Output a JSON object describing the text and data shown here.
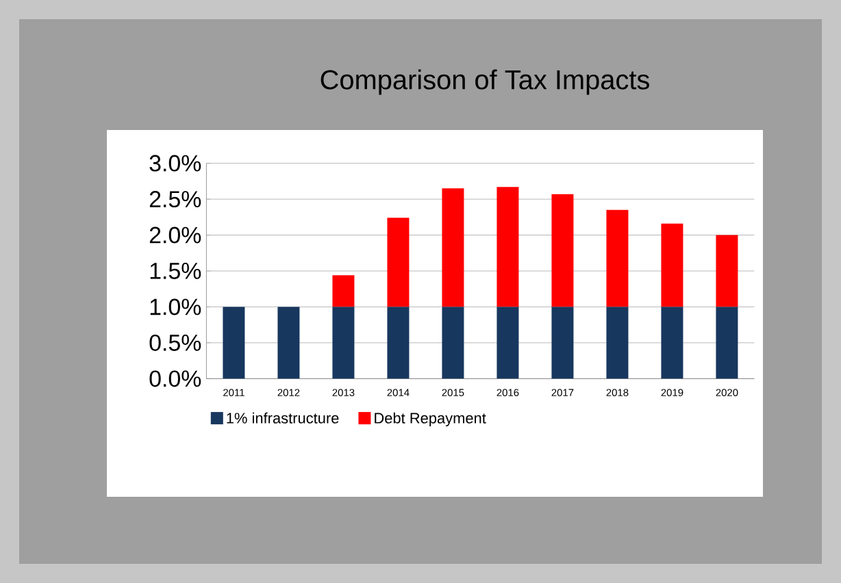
{
  "chart_data": {
    "type": "bar",
    "title": "Comparison of Tax Impacts",
    "stacked": true,
    "categories": [
      "2011",
      "2012",
      "2013",
      "2014",
      "2015",
      "2016",
      "2017",
      "2018",
      "2019",
      "2020"
    ],
    "series": [
      {
        "name": "1% infrastructure",
        "color": "#17375e",
        "values": [
          1.0,
          1.0,
          1.0,
          1.0,
          1.0,
          1.0,
          1.0,
          1.0,
          1.0,
          1.0
        ]
      },
      {
        "name": "Debt Repayment",
        "color": "#ff0000",
        "values": [
          0,
          0,
          0.44,
          1.24,
          1.65,
          1.67,
          1.57,
          1.35,
          1.16,
          1.0
        ]
      }
    ],
    "ylim": [
      0,
      3
    ],
    "yticks": [
      {
        "value": 0,
        "label": "0.0%"
      },
      {
        "value": 0.5,
        "label": "0.5%"
      },
      {
        "value": 1,
        "label": "1.0%"
      },
      {
        "value": 1.5,
        "label": "1.5%"
      },
      {
        "value": 2,
        "label": "2.0%"
      },
      {
        "value": 2.5,
        "label": "2.5%"
      },
      {
        "value": 3,
        "label": "3.0%"
      }
    ],
    "grid": "y",
    "legend": "bottom left"
  }
}
